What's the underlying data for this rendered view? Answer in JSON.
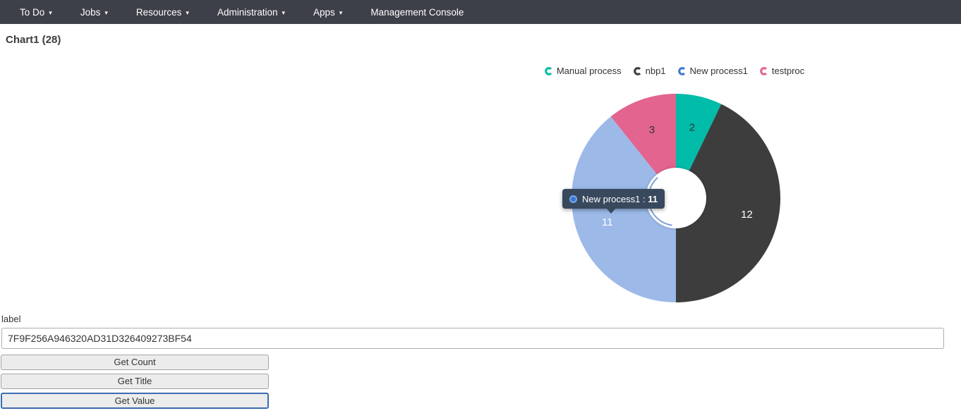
{
  "nav": {
    "bg_color": "#3d4048",
    "items": [
      {
        "label": "To Do",
        "dropdown": true
      },
      {
        "label": "Jobs",
        "dropdown": true
      },
      {
        "label": "Resources",
        "dropdown": true
      },
      {
        "label": "Administration",
        "dropdown": true
      },
      {
        "label": "Apps",
        "dropdown": true
      },
      {
        "label": "Management Console",
        "dropdown": false
      }
    ]
  },
  "page": {
    "title": "Chart1 (28)"
  },
  "chart_data": {
    "type": "pie",
    "subtype": "donut",
    "title": "Chart1 (28)",
    "total": 28,
    "start_angle_deg": 0,
    "clockwise": true,
    "legend_position": "top",
    "series": [
      {
        "name": "Manual process",
        "value": 2,
        "color": "#00bca8",
        "legend_color": "#00bca8",
        "label_color": "#333333",
        "highlighted": false
      },
      {
        "name": "nbp1",
        "value": 12,
        "color": "#3d3d3d",
        "legend_color": "#3d3d3d",
        "label_color": "#ffffff",
        "highlighted": false
      },
      {
        "name": "New process1",
        "value": 11,
        "color": "#9cb9e8",
        "legend_color": "#3d78d6",
        "label_color": "#ffffff",
        "highlighted": true
      },
      {
        "name": "testproc",
        "value": 3,
        "color": "#e2648f",
        "legend_color": "#e2648f",
        "label_color": "#333333",
        "highlighted": false
      }
    ],
    "highlight_arc_color": "#7da2d8"
  },
  "tooltip": {
    "series": "New process1",
    "separator": " : ",
    "value": "11",
    "marker_color": "#3579d8",
    "bg_color": "#38495e"
  },
  "form": {
    "label": "label",
    "input_value": "7F9F256A946320AD31D326409273BF54",
    "buttons": [
      {
        "label": "Get Count",
        "focused": false
      },
      {
        "label": "Get Title",
        "focused": false
      },
      {
        "label": "Get Value",
        "focused": true
      }
    ]
  }
}
